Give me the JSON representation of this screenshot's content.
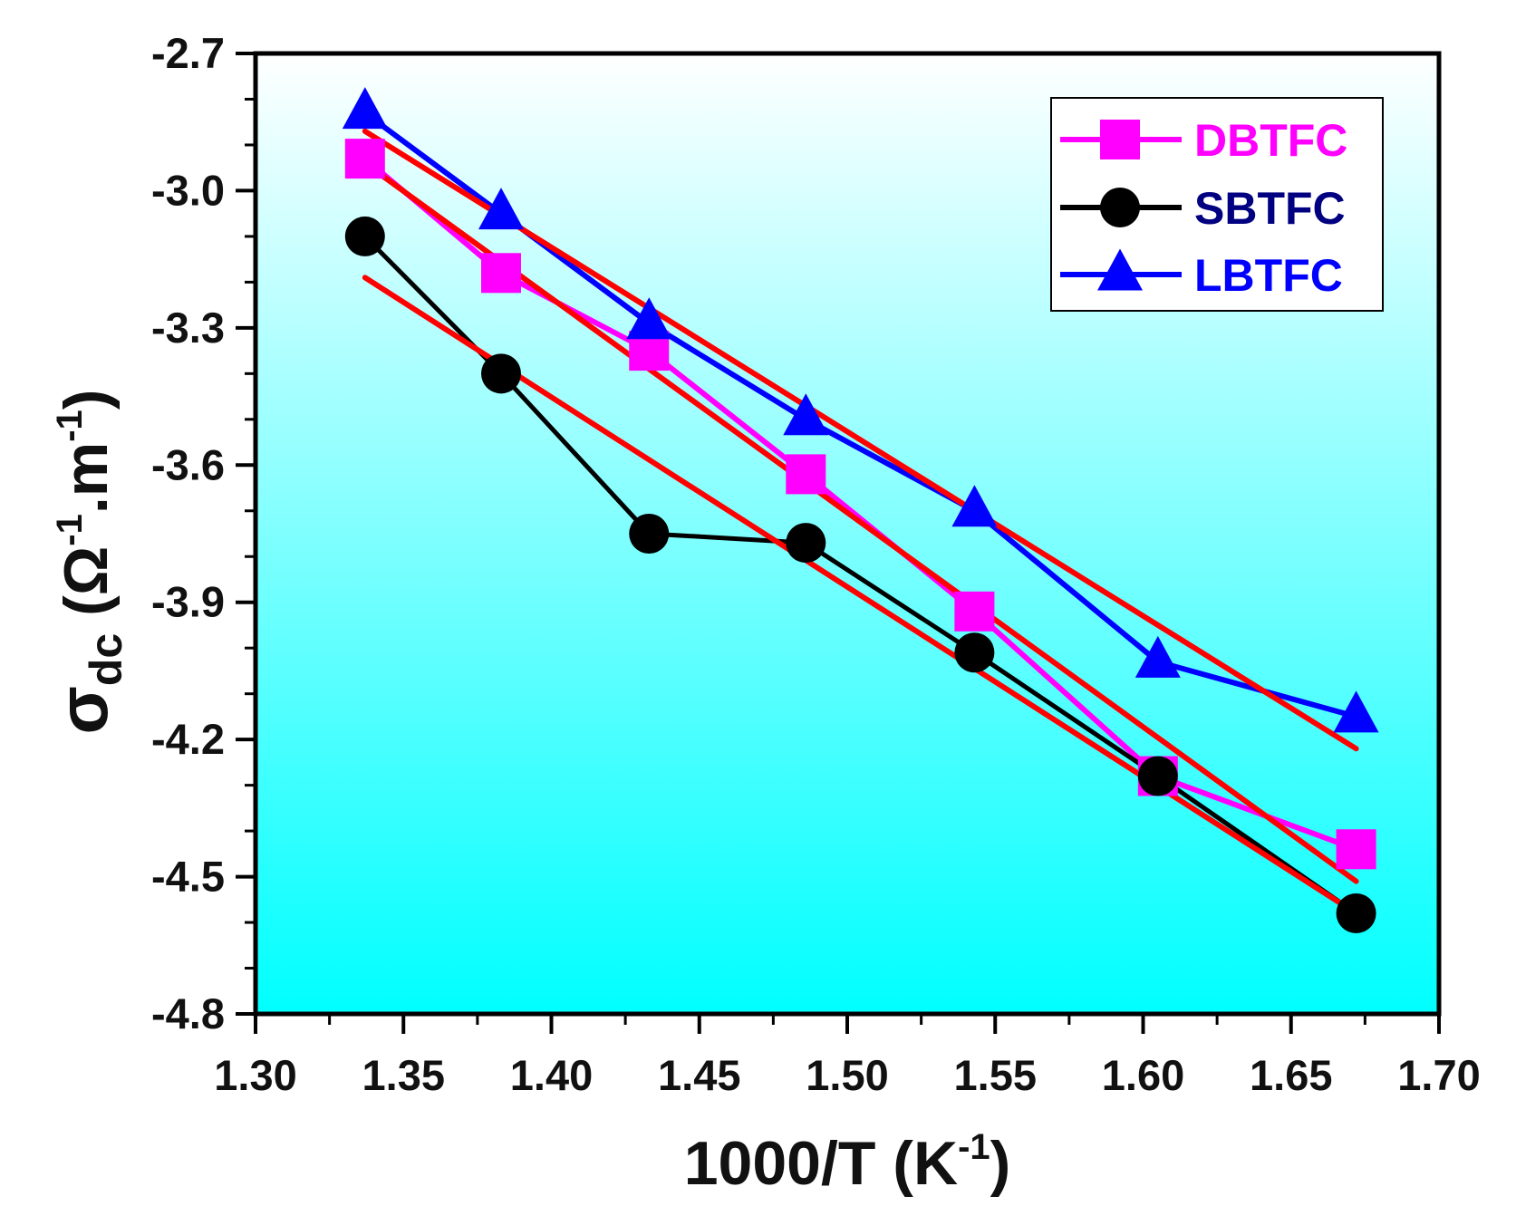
{
  "chart_data": {
    "type": "line",
    "xlabel": {
      "main": "1000/T (K",
      "sup": "-1",
      "end": ")"
    },
    "ylabel": {
      "sigma": "σ",
      "sub": "dc",
      "open": " (Ω",
      "sup1": "-1",
      "mid": ".m",
      "sup2": "-1",
      "close": ")"
    },
    "xlim": [
      1.3,
      1.7
    ],
    "ylim": [
      -4.8,
      -2.7
    ],
    "xticks": [
      "1.30",
      "1.35",
      "1.40",
      "1.45",
      "1.50",
      "1.55",
      "1.60",
      "1.65",
      "1.70"
    ],
    "yticks": [
      "-2.7",
      "-3.0",
      "-3.3",
      "-3.6",
      "-3.9",
      "-4.2",
      "-4.5",
      "-4.8"
    ],
    "x": [
      1.337,
      1.383,
      1.433,
      1.486,
      1.543,
      1.605,
      1.672
    ],
    "series": [
      {
        "name": "DBTFC",
        "marker": "square",
        "color": "#ff00ff",
        "values": [
          -2.93,
          -3.18,
          -3.35,
          -3.62,
          -3.92,
          -4.28,
          -4.44
        ]
      },
      {
        "name": "SBTFC",
        "marker": "circle",
        "color": "#000000",
        "values": [
          -3.1,
          -3.4,
          -3.75,
          -3.77,
          -4.01,
          -4.28,
          -4.58
        ]
      },
      {
        "name": "LBTFC",
        "marker": "triangle",
        "color": "#0000ff",
        "values": [
          -2.83,
          -3.05,
          -3.29,
          -3.5,
          -3.7,
          -4.03,
          -4.15
        ]
      }
    ],
    "fits": [
      {
        "series": "DBTFC",
        "color": "#ff0000",
        "x": [
          1.337,
          1.672
        ],
        "y": [
          -2.94,
          -4.51
        ]
      },
      {
        "series": "SBTFC",
        "color": "#ff0000",
        "x": [
          1.337,
          1.672
        ],
        "y": [
          -3.19,
          -4.58
        ]
      },
      {
        "series": "LBTFC",
        "color": "#ff0000",
        "x": [
          1.337,
          1.672
        ],
        "y": [
          -2.87,
          -4.22
        ]
      }
    ],
    "legend_position": "top-right",
    "grid": false,
    "background": {
      "top": "#ffffff",
      "bottom": "#00ffff"
    }
  }
}
